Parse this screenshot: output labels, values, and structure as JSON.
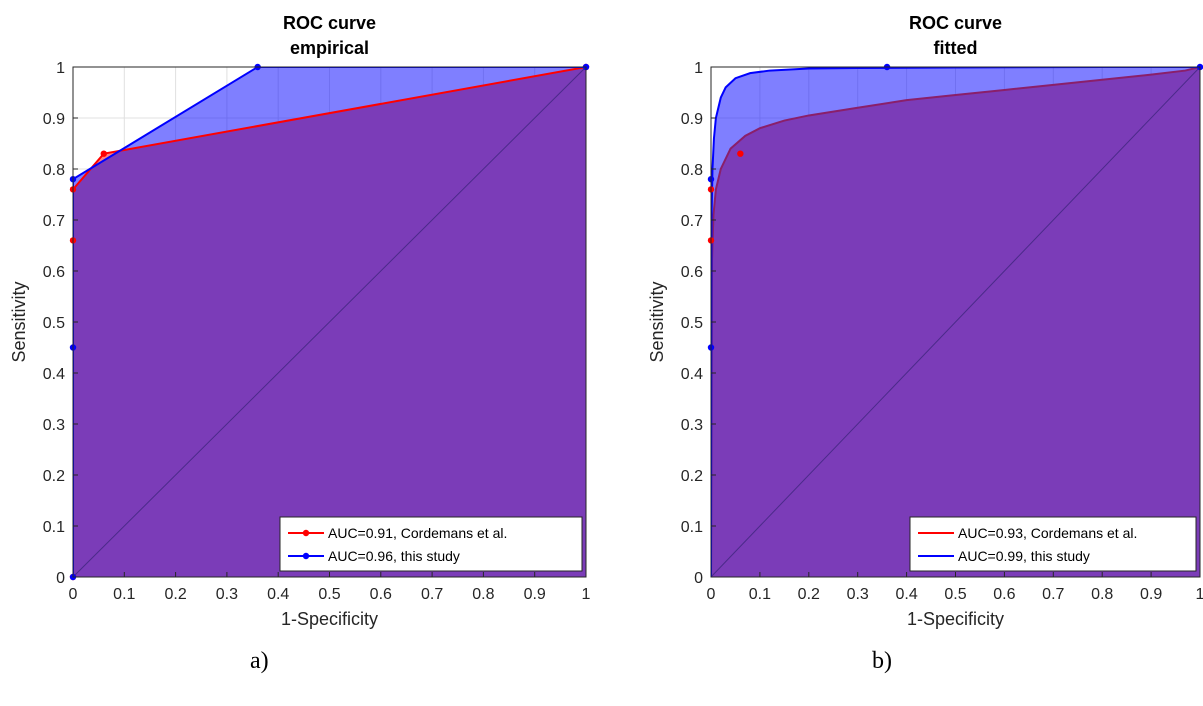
{
  "colors": {
    "red_series": "#ff0000",
    "blue_series": "#0000ff",
    "red_fill": "#ff0000",
    "blue_fill": "#0000ff",
    "overlap_fill": "#7b3cb8",
    "grid": "#e0e0e0",
    "axis": "#262626"
  },
  "chart_data": [
    {
      "type": "line",
      "panel_label": "a)",
      "title": "ROC curve",
      "subtitle": "empirical",
      "xlabel": "1-Specificity",
      "ylabel": "Sensitivity",
      "xlim": [
        0,
        1
      ],
      "ylim": [
        0,
        1
      ],
      "x_ticks": [
        "0",
        "0.1",
        "0.2",
        "0.3",
        "0.4",
        "0.5",
        "0.6",
        "0.7",
        "0.8",
        "0.9",
        "1"
      ],
      "y_ticks": [
        "0",
        "0.1",
        "0.2",
        "0.3",
        "0.4",
        "0.5",
        "0.6",
        "0.7",
        "0.8",
        "0.9",
        "1"
      ],
      "grid": true,
      "legend_position": "bottom-right",
      "series": [
        {
          "name": "AUC=0.91, Cordemans et al.",
          "color": "#ff0000",
          "markers": true,
          "x": [
            0,
            0,
            0,
            0.06,
            1
          ],
          "y": [
            0,
            0.66,
            0.76,
            0.83,
            1
          ]
        },
        {
          "name": "AUC=0.96, this study",
          "color": "#0000ff",
          "markers": true,
          "x": [
            0,
            0,
            0,
            0.36,
            1
          ],
          "y": [
            0,
            0.45,
            0.78,
            1,
            1
          ]
        }
      ],
      "diagonal": true
    },
    {
      "type": "line",
      "panel_label": "b)",
      "title": "ROC curve",
      "subtitle": "fitted",
      "xlabel": "1-Specificity",
      "ylabel": "Sensitivity",
      "xlim": [
        0,
        1
      ],
      "ylim": [
        0,
        1
      ],
      "x_ticks": [
        "0",
        "0.1",
        "0.2",
        "0.3",
        "0.4",
        "0.5",
        "0.6",
        "0.7",
        "0.8",
        "0.9",
        "1"
      ],
      "y_ticks": [
        "0",
        "0.1",
        "0.2",
        "0.3",
        "0.4",
        "0.5",
        "0.6",
        "0.7",
        "0.8",
        "0.9",
        "1"
      ],
      "grid": true,
      "legend_position": "bottom-right",
      "series": [
        {
          "name": "AUC=0.93, Cordemans et al.",
          "color": "#ff0000",
          "markers": false,
          "x": [
            0,
            0.002,
            0.005,
            0.01,
            0.02,
            0.04,
            0.07,
            0.1,
            0.15,
            0.2,
            0.3,
            0.4,
            0.5,
            0.6,
            0.7,
            0.8,
            0.9,
            0.97,
            1
          ],
          "y": [
            0,
            0.62,
            0.71,
            0.76,
            0.8,
            0.84,
            0.865,
            0.88,
            0.895,
            0.905,
            0.92,
            0.935,
            0.945,
            0.955,
            0.965,
            0.975,
            0.985,
            0.993,
            1
          ],
          "points": {
            "x": [
              0,
              0,
              0.06
            ],
            "y": [
              0.66,
              0.76,
              0.83
            ]
          }
        },
        {
          "name": "AUC=0.99, this study",
          "color": "#0000ff",
          "markers": false,
          "x": [
            0,
            0.001,
            0.003,
            0.006,
            0.01,
            0.02,
            0.03,
            0.05,
            0.08,
            0.12,
            0.2,
            0.3,
            0.5,
            0.8,
            1
          ],
          "y": [
            0,
            0.7,
            0.8,
            0.86,
            0.9,
            0.94,
            0.96,
            0.978,
            0.988,
            0.993,
            0.997,
            0.998,
            0.999,
            1,
            1
          ],
          "points": {
            "x": [
              0,
              0,
              0.36,
              1
            ],
            "y": [
              0.45,
              0.78,
              1,
              1
            ]
          }
        }
      ],
      "diagonal": true
    }
  ]
}
